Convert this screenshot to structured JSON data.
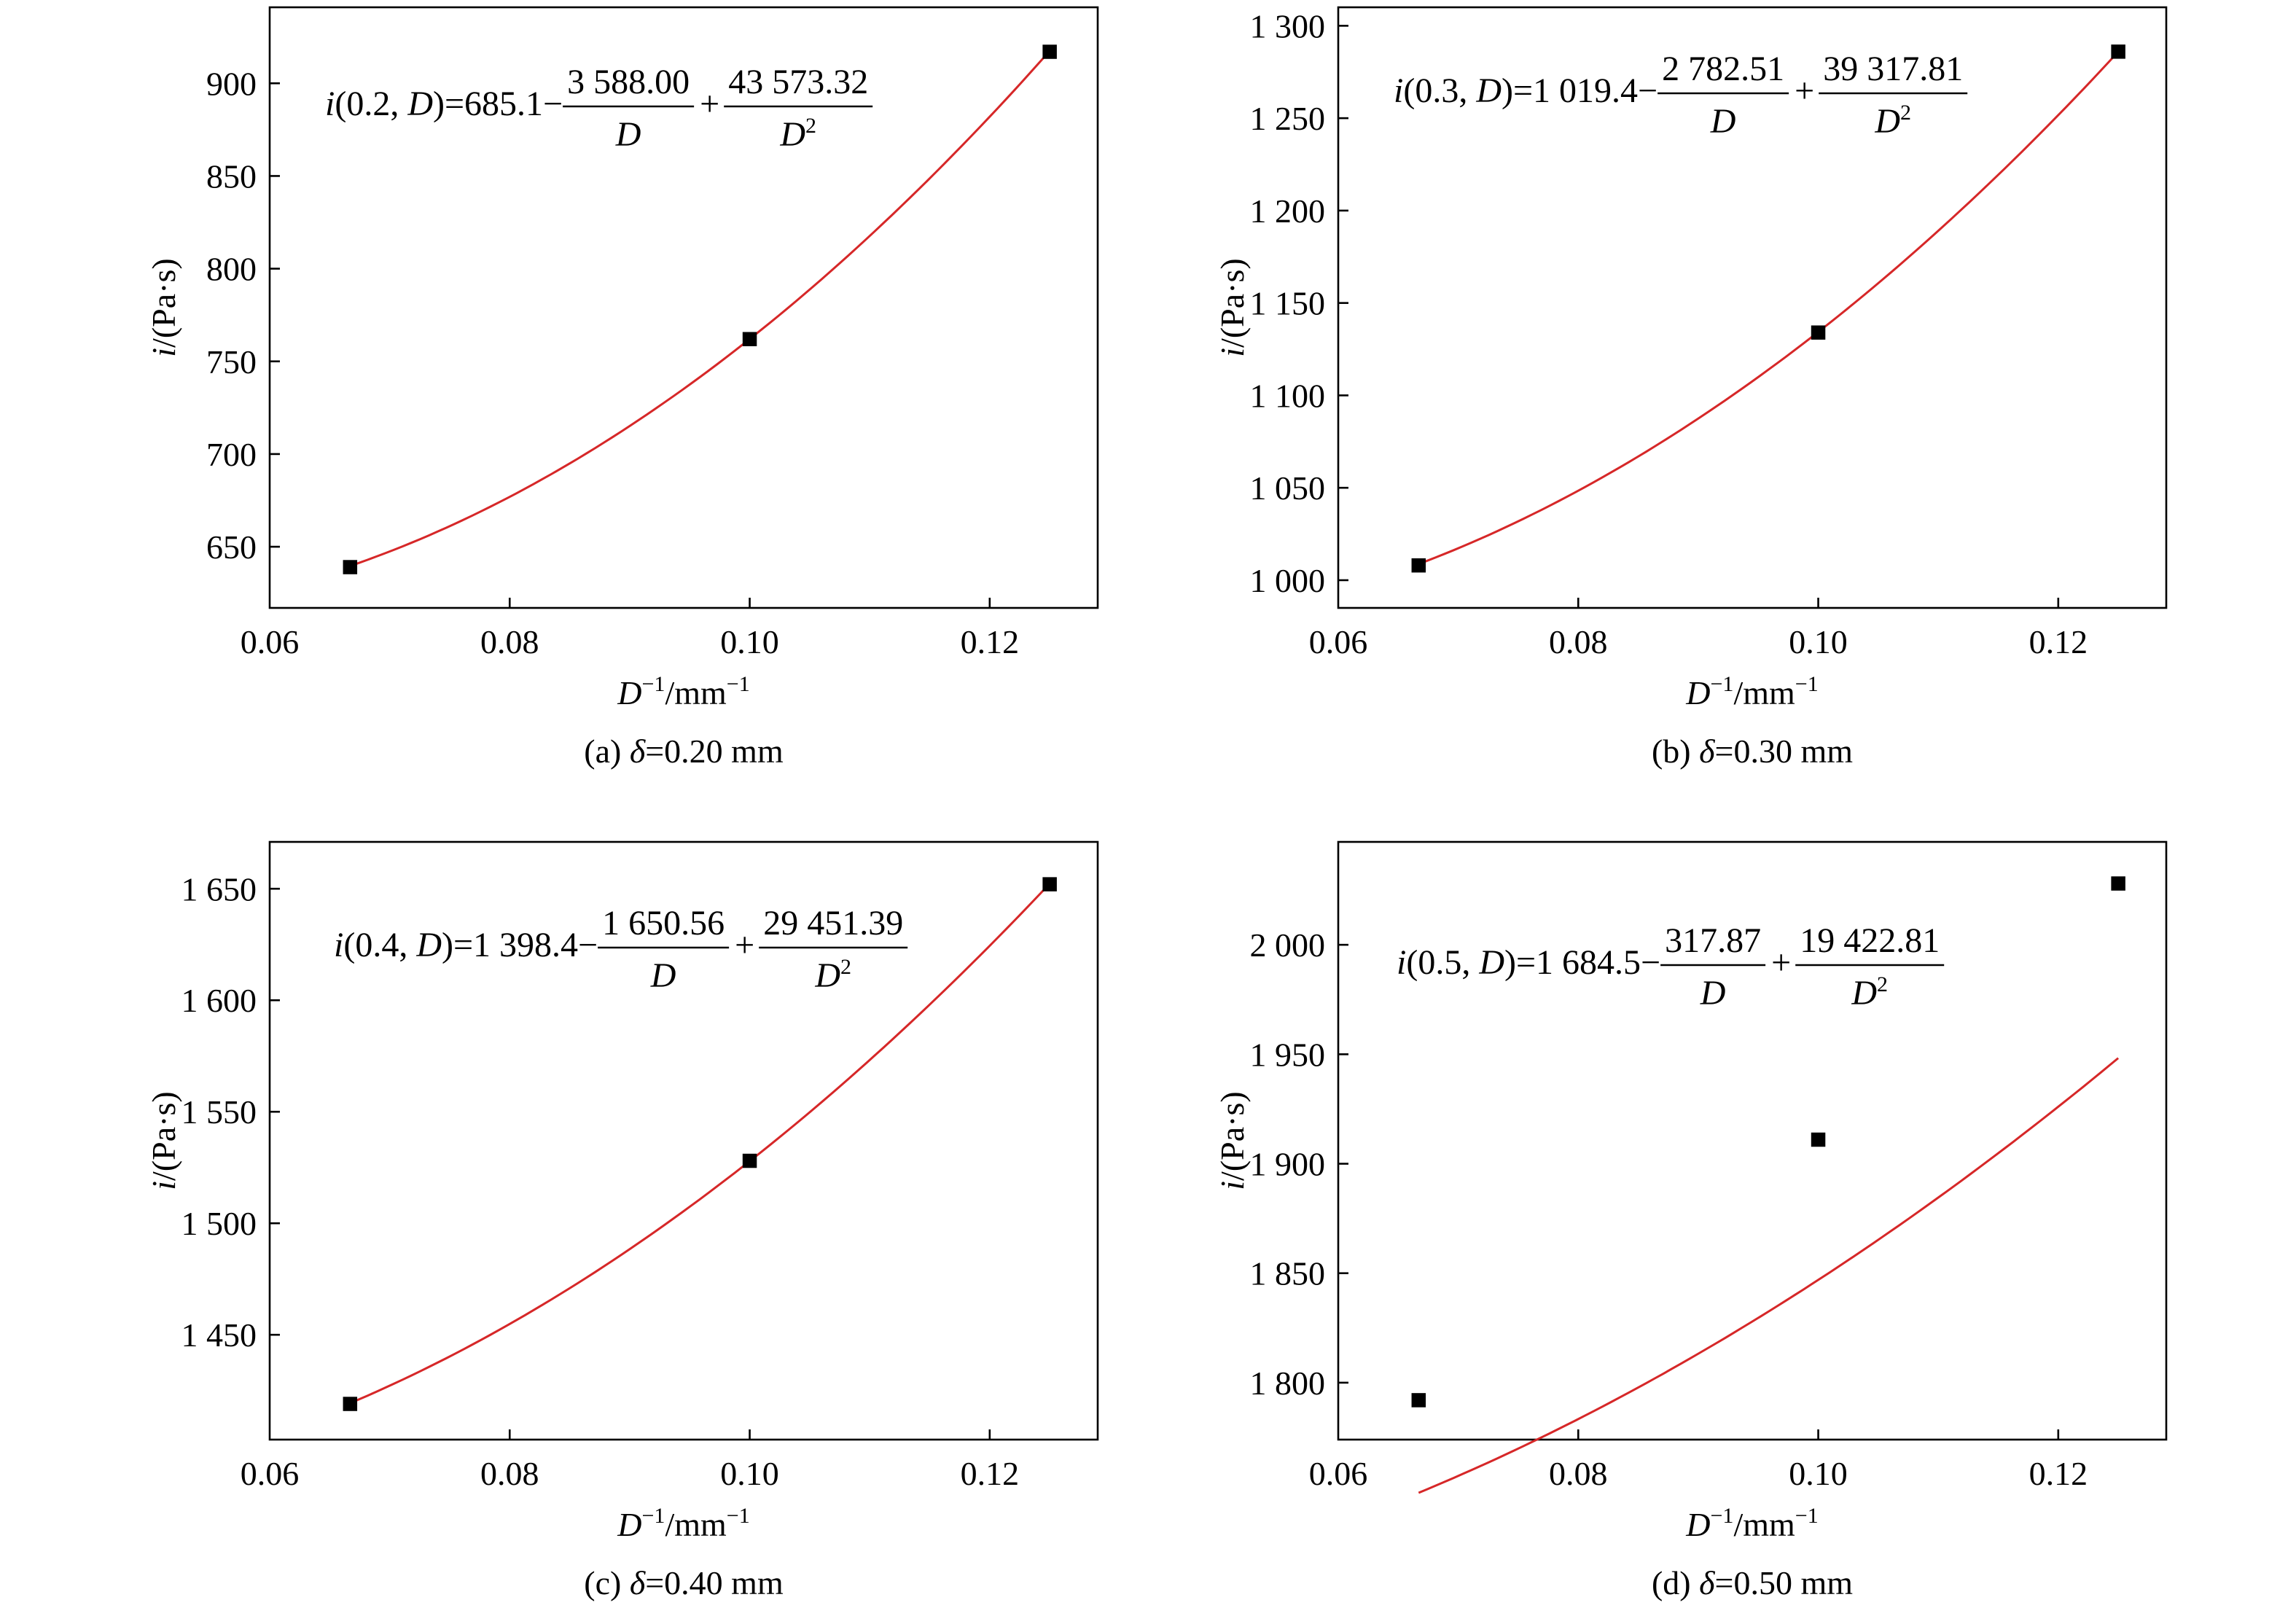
{
  "colors": {
    "fit_curve": "#d62728",
    "marker": "#000000",
    "axes": "#000000",
    "background": "#ffffff"
  },
  "chart_data": [
    {
      "type": "scatter",
      "panel_caption": "(a) δ=0.20 mm",
      "caption_prefix": "(a) ",
      "caption_symbol": "δ",
      "caption_value": "=0.20 mm",
      "xlabel_var": "D",
      "xlabel_sup": "−1",
      "xlabel_unit": "/mm",
      "xlabel_unit_sup": "−1",
      "ylabel_var": "i",
      "ylabel_unit": "/(Pa·s)",
      "xlim": [
        0.06,
        0.129
      ],
      "ylim": [
        617,
        941
      ],
      "xticks": [
        0.06,
        0.08,
        0.1,
        0.12
      ],
      "xtick_labels": [
        "0.06",
        "0.08",
        "0.10",
        "0.12"
      ],
      "yticks": [
        650,
        700,
        750,
        800,
        850,
        900
      ],
      "ytick_labels": [
        "650",
        "700",
        "750",
        "800",
        "850",
        "900"
      ],
      "x": [
        0.0667,
        0.1,
        0.125
      ],
      "y": [
        639,
        762,
        917
      ],
      "fit": {
        "a": 685.1,
        "b": 3588.0,
        "c": 43573.32
      },
      "equation": {
        "lhs_i": "i",
        "lhs_args": "(0.2, ",
        "lhs_D": "D",
        "lhs_close": ")=685.1−",
        "num1": "3 588.00",
        "den1": "D",
        "plus": "+",
        "num2": "43 573.32",
        "den2": "D",
        "den2_sup": "2"
      }
    },
    {
      "type": "scatter",
      "panel_caption": "(b) δ=0.30 mm",
      "caption_prefix": "(b) ",
      "caption_symbol": "δ",
      "caption_value": "=0.30 mm",
      "xlabel_var": "D",
      "xlabel_sup": "−1",
      "xlabel_unit": "/mm",
      "xlabel_unit_sup": "−1",
      "ylabel_var": "i",
      "ylabel_unit": "/(Pa·s)",
      "xlim": [
        0.06,
        0.129
      ],
      "ylim": [
        985,
        1310
      ],
      "xticks": [
        0.06,
        0.08,
        0.1,
        0.12
      ],
      "xtick_labels": [
        "0.06",
        "0.08",
        "0.10",
        "0.12"
      ],
      "yticks": [
        1000,
        1050,
        1100,
        1150,
        1200,
        1250,
        1300
      ],
      "ytick_labels": [
        "1 000",
        "1 050",
        "1 100",
        "1 150",
        "1 200",
        "1 250",
        "1 300"
      ],
      "x": [
        0.0667,
        0.1,
        0.125
      ],
      "y": [
        1008,
        1134,
        1286
      ],
      "fit": {
        "a": 1019.4,
        "b": 2782.51,
        "c": 39317.81
      },
      "equation": {
        "lhs_i": "i",
        "lhs_args": "(0.3, ",
        "lhs_D": "D",
        "lhs_close": ")=1 019.4−",
        "num1": "2 782.51",
        "den1": "D",
        "plus": "+",
        "num2": "39 317.81",
        "den2": "D",
        "den2_sup": "2"
      }
    },
    {
      "type": "scatter",
      "panel_caption": "(c) δ=0.40 mm",
      "caption_prefix": "(c) ",
      "caption_symbol": "δ",
      "caption_value": "=0.40 mm",
      "xlabel_var": "D",
      "xlabel_sup": "−1",
      "xlabel_unit": "/mm",
      "xlabel_unit_sup": "−1",
      "ylabel_var": "i",
      "ylabel_unit": "/(Pa·s)",
      "xlim": [
        0.06,
        0.129
      ],
      "ylim": [
        1403,
        1671
      ],
      "xticks": [
        0.06,
        0.08,
        0.1,
        0.12
      ],
      "xtick_labels": [
        "0.06",
        "0.08",
        "0.10",
        "0.12"
      ],
      "yticks": [
        1450,
        1500,
        1550,
        1600,
        1650
      ],
      "ytick_labels": [
        "1 450",
        "1 500",
        "1 550",
        "1 600",
        "1 650"
      ],
      "x": [
        0.0667,
        0.1,
        0.125
      ],
      "y": [
        1419,
        1528,
        1652
      ],
      "fit": {
        "a": 1398.4,
        "b": 1650.56,
        "c": 29451.39
      },
      "equation": {
        "lhs_i": "i",
        "lhs_args": "(0.4, ",
        "lhs_D": "D",
        "lhs_close": ")=1 398.4−",
        "num1": "1 650.56",
        "den1": "D",
        "plus": "+",
        "num2": "29 451.39",
        "den2": "D",
        "den2_sup": "2"
      }
    },
    {
      "type": "scatter",
      "panel_caption": "(d) δ=0.50 mm",
      "caption_prefix": "(d) ",
      "caption_symbol": "δ",
      "caption_value": "=0.50 mm",
      "xlabel_var": "D",
      "xlabel_sup": "−1",
      "xlabel_unit": "/mm",
      "xlabel_unit_sup": "−1",
      "ylabel_var": "i",
      "ylabel_unit": "/(Pa·s)",
      "xlim": [
        0.06,
        0.129
      ],
      "ylim": [
        1774,
        2047
      ],
      "xticks": [
        0.06,
        0.08,
        0.1,
        0.12
      ],
      "xtick_labels": [
        "0.06",
        "0.08",
        "0.10",
        "0.12"
      ],
      "yticks": [
        1800,
        1850,
        1900,
        1950,
        2000
      ],
      "ytick_labels": [
        "1 800",
        "1 850",
        "1 900",
        "1 950",
        "2 000"
      ],
      "x": [
        0.0667,
        0.1,
        0.125
      ],
      "y": [
        1792,
        1911,
        2028
      ],
      "fit": {
        "a": 1684.5,
        "b": 317.87,
        "c": 19422.81
      },
      "equation": {
        "lhs_i": "i",
        "lhs_args": "(0.5, ",
        "lhs_D": "D",
        "lhs_close": ")=1 684.5−",
        "num1": "317.87",
        "den1": "D",
        "plus": "+",
        "num2": "19 422.81",
        "den2": "D",
        "den2_sup": "2"
      }
    }
  ]
}
